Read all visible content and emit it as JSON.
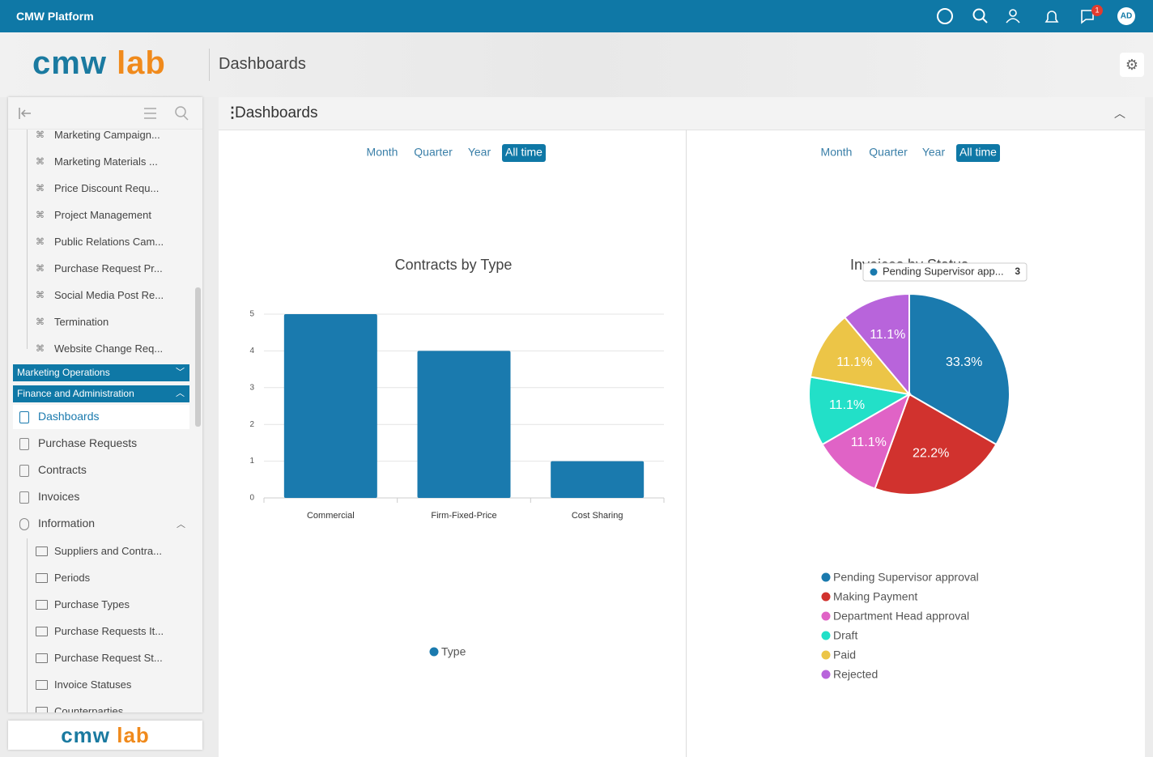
{
  "topbar": {
    "title": "CMW Platform",
    "badge": "1",
    "avatar": "AD"
  },
  "header": {
    "logo": {
      "part1": "cmw",
      "part2": "lab"
    },
    "title": "Dashboards"
  },
  "sidebar": {
    "tree_items": [
      "Marketing Campaign...",
      "Marketing Materials ...",
      "Price Discount Requ...",
      "Project Management",
      "Public Relations Cam...",
      "Purchase Request Pr...",
      "Social Media Post Re...",
      "Termination",
      "Website Change Req..."
    ],
    "groups": [
      "Marketing Operations",
      "Finance and Administration"
    ],
    "nav_items": [
      "Dashboards",
      "Purchase Requests",
      "Contracts",
      "Invoices",
      "Information"
    ],
    "sub_items": [
      "Suppliers and Contra...",
      "Periods",
      "Purchase Types",
      "Purchase Requests It...",
      "Purchase Request St...",
      "Invoice Statuses",
      "Counterparties"
    ],
    "footer_logo": {
      "part1": "cmw",
      "part2": "lab"
    }
  },
  "panel": {
    "title": "Dashboards"
  },
  "chart_data": [
    {
      "type": "bar",
      "title": "Contracts by Type",
      "periods": [
        "Month",
        "Quarter",
        "Year",
        "All time"
      ],
      "active_period": "All time",
      "categories": [
        "Commercial",
        "Firm-Fixed-Price",
        "Cost Sharing"
      ],
      "series": [
        {
          "name": "Type",
          "color": "#1a7aae",
          "values": [
            5,
            4,
            1
          ]
        }
      ],
      "ylim": [
        0,
        5
      ],
      "yticks": [
        0,
        1,
        2,
        3,
        4,
        5
      ],
      "grid": true
    },
    {
      "type": "pie",
      "title": "Invoices by Status",
      "periods": [
        "Month",
        "Quarter",
        "Year",
        "All time"
      ],
      "active_period": "All time",
      "categories": [
        "Pending Supervisor approval",
        "Making Payment",
        "Department Head approval",
        "Draft",
        "Paid",
        "Rejected"
      ],
      "values": [
        33.3,
        22.2,
        11.1,
        11.1,
        11.1,
        11.1
      ],
      "value_labels": [
        "33.3%",
        "22.2%",
        "11.1%",
        "11.1%",
        "11.1%",
        "11.1%"
      ],
      "colors": [
        "#1a7aae",
        "#d1322e",
        "#e063c6",
        "#22e0c8",
        "#ecc547",
        "#b864db"
      ],
      "tooltip": {
        "label": "Pending Supervisor app...",
        "value": 3
      }
    }
  ]
}
